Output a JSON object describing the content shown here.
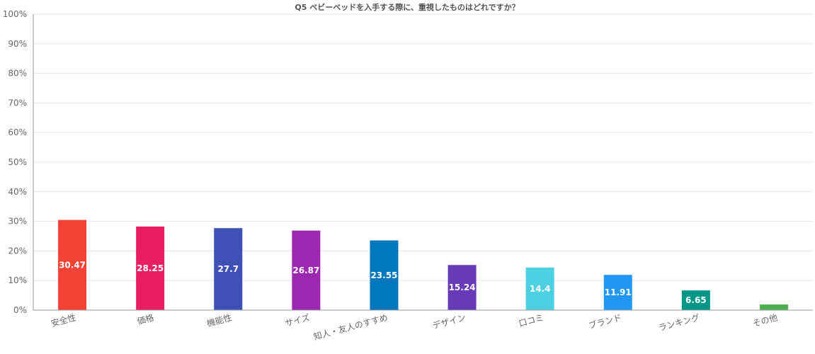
{
  "chart_data": {
    "type": "bar",
    "title": "Q5 ベビーベッドを入手する際に、重視したものはどれですか？",
    "xlabel": "",
    "ylabel": "",
    "ylim": [
      0,
      100
    ],
    "yticks": [
      "0%",
      "10%",
      "20%",
      "30%",
      "40%",
      "50%",
      "60%",
      "70%",
      "80%",
      "90%",
      "100%"
    ],
    "grid": true,
    "legend": "none",
    "categories": [
      "安全性",
      "価格",
      "機能性",
      "サイズ",
      "知人・友人のすすめ",
      "デザイン",
      "口コミ",
      "ブランド",
      "ランキング",
      "その他"
    ],
    "values": [
      30.47,
      28.25,
      27.7,
      26.87,
      23.55,
      15.24,
      14.4,
      11.91,
      6.65,
      1.9
    ],
    "data_labels": [
      "30.47",
      "28.25",
      "27.7",
      "26.87",
      "23.55",
      "15.24",
      "14.4",
      "11.91",
      "6.65",
      ""
    ],
    "colors": [
      "#f44336",
      "#e91e63",
      "#3f51b5",
      "#9c27b0",
      "#0277bd",
      "#673ab7",
      "#4dd0e1",
      "#2196f3",
      "#009688",
      "#4caf50"
    ]
  }
}
